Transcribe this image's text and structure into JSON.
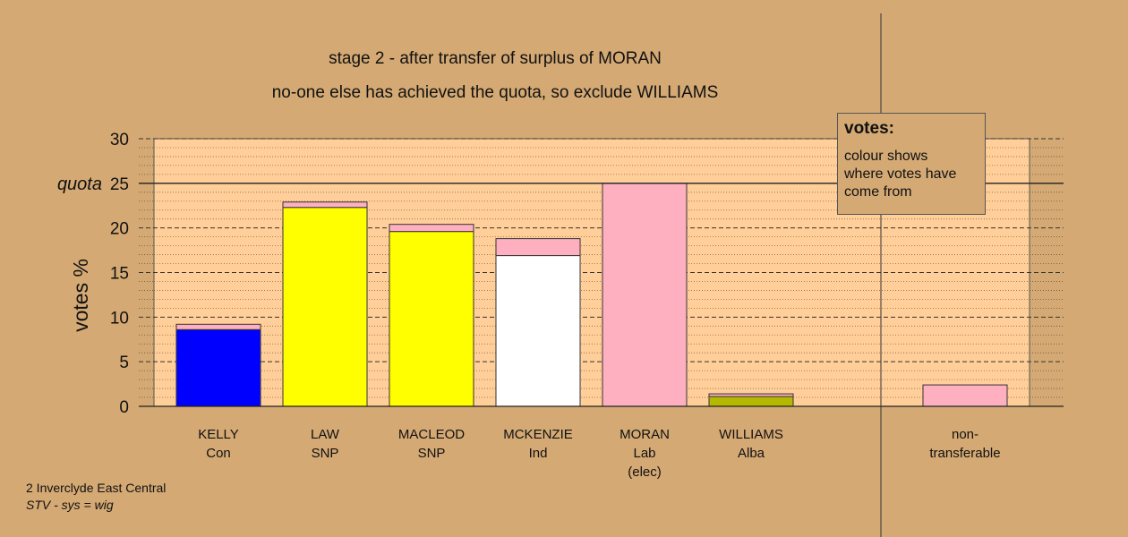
{
  "title_line1": "stage 2 - after transfer of surplus of MORAN",
  "title_line2": "no-one else has achieved the quota, so exclude WILLIAMS",
  "legend": {
    "title": "votes:",
    "text": "colour shows where votes have come from"
  },
  "footer": {
    "line1": "2 Inverclyde East Central",
    "line2": "STV - sys = wig"
  },
  "chart_data": {
    "type": "bar",
    "stacked": true,
    "ylabel": "votes %",
    "ylim": [
      0,
      30
    ],
    "yticks": [
      0,
      5,
      10,
      15,
      20,
      25,
      30
    ],
    "quota": 25,
    "quota_label": "quota",
    "categories": [
      {
        "name": "KELLY",
        "party": "Con",
        "note": ""
      },
      {
        "name": "LAW",
        "party": "SNP",
        "note": ""
      },
      {
        "name": "MACLEOD",
        "party": "SNP",
        "note": ""
      },
      {
        "name": "MCKENZIE",
        "party": "Ind",
        "note": ""
      },
      {
        "name": "MORAN",
        "party": "Lab",
        "note": "(elec)"
      },
      {
        "name": "WILLIAMS",
        "party": "Alba",
        "note": ""
      },
      {
        "name": "non-",
        "party": "transferable",
        "note": ""
      }
    ],
    "series": [
      {
        "color": "#0000ff",
        "values": [
          8.6,
          0,
          0,
          0,
          0,
          0,
          0
        ]
      },
      {
        "color": "#ffff00",
        "values": [
          0,
          22.3,
          19.6,
          0,
          0,
          0,
          0
        ]
      },
      {
        "color": "#ffffff",
        "values": [
          0,
          0,
          0,
          16.9,
          0,
          0,
          0
        ]
      },
      {
        "color": "#b5b800",
        "values": [
          0,
          0,
          0,
          0,
          0,
          1.1,
          0
        ]
      },
      {
        "color": "#ffb0c0",
        "values": [
          0.6,
          0.6,
          0.8,
          1.9,
          25.0,
          0.3,
          2.4
        ]
      }
    ],
    "grid": "dotted",
    "plot_background": "#ffce99"
  }
}
